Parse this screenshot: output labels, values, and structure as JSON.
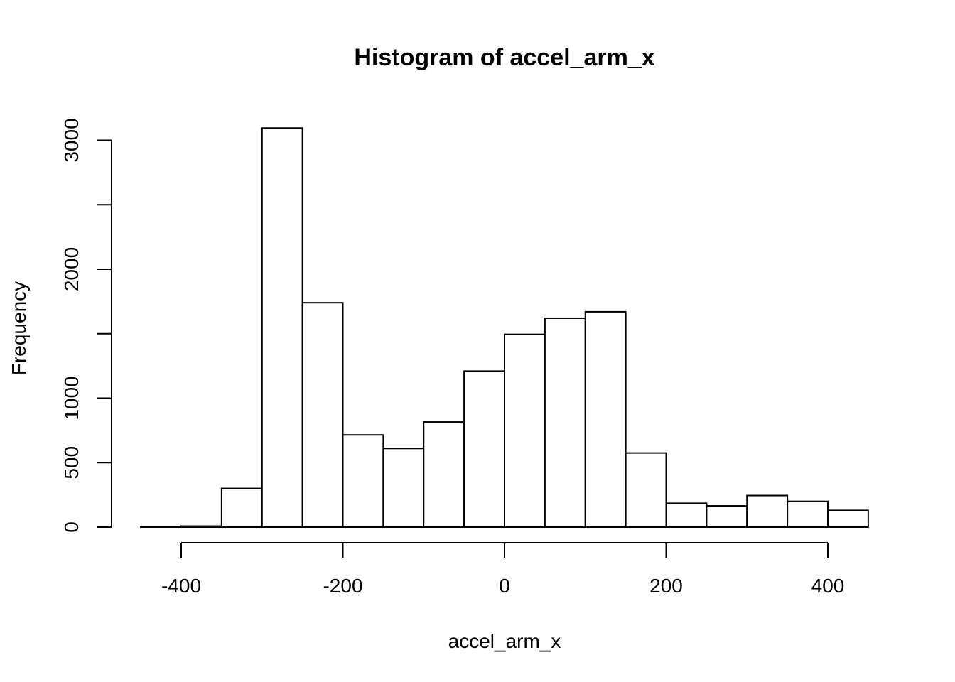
{
  "chart_data": {
    "type": "bar",
    "title": "Histogram of accel_arm_x",
    "xlabel": "accel_arm_x",
    "ylabel": "Frequency",
    "bin_edges": [
      -450,
      -400,
      -350,
      -300,
      -250,
      -200,
      -150,
      -100,
      -50,
      0,
      50,
      100,
      150,
      200,
      250,
      300,
      350,
      400,
      450
    ],
    "values": [
      2,
      8,
      300,
      3095,
      1740,
      715,
      610,
      815,
      1210,
      1495,
      1620,
      1670,
      575,
      185,
      165,
      245,
      200,
      130
    ],
    "xlim": [
      -450,
      450
    ],
    "ylim": [
      0,
      3100
    ],
    "x_ticks": [
      -400,
      -200,
      0,
      200,
      400
    ],
    "x_tick_labels": [
      "-400",
      "-200",
      "0",
      "200",
      "400"
    ],
    "y_ticks": [
      0,
      500,
      1000,
      1500,
      2000,
      2500,
      3000
    ],
    "y_tick_labels": [
      "0",
      "500",
      "1000",
      "",
      "2000",
      "",
      "3000"
    ],
    "grid": false,
    "legend": "none"
  }
}
